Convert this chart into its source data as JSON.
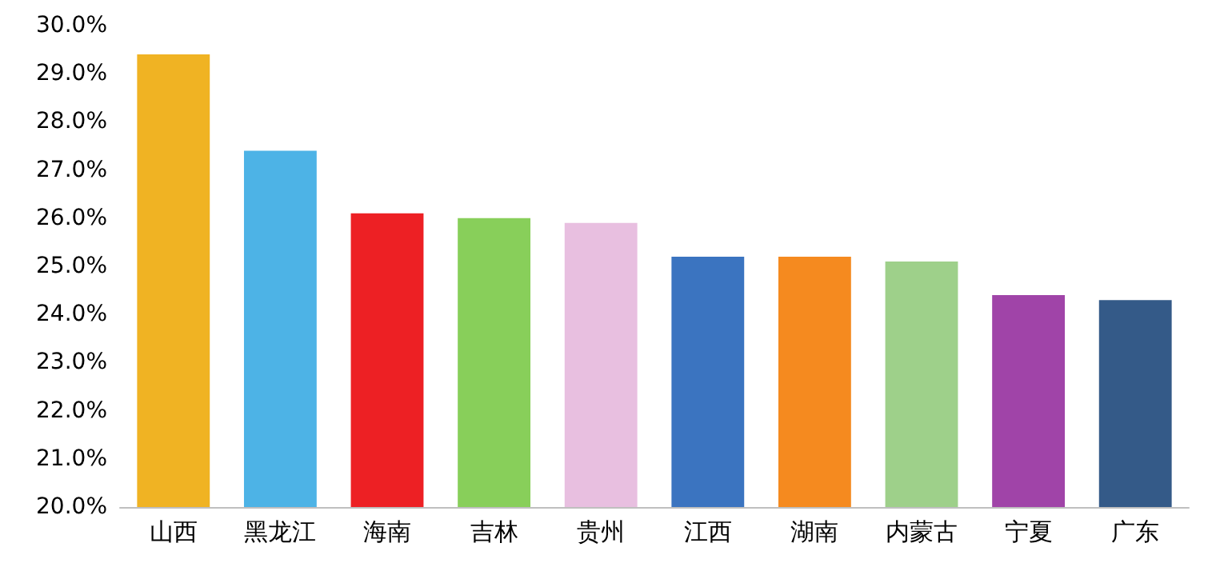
{
  "chart_data": {
    "type": "bar",
    "categories": [
      "山西",
      "黑龙江",
      "海南",
      "吉林",
      "贵州",
      "江西",
      "湖南",
      "内蒙古",
      "宁夏",
      "广东"
    ],
    "values": [
      29.4,
      27.4,
      26.1,
      26.0,
      25.9,
      25.2,
      25.2,
      25.1,
      24.4,
      24.3
    ],
    "colors": [
      "#f0b323",
      "#4db3e6",
      "#ed2024",
      "#88cf5a",
      "#e8bfe0",
      "#3b74c0",
      "#f58a1f",
      "#9ed08a",
      "#a044a8",
      "#345a88"
    ],
    "ylim": [
      20,
      30
    ],
    "yticks": [
      {
        "value": 20,
        "label": "20.0%"
      },
      {
        "value": 21,
        "label": "21.0%"
      },
      {
        "value": 22,
        "label": "22.0%"
      },
      {
        "value": 23,
        "label": "23.0%"
      },
      {
        "value": 24,
        "label": "24.0%"
      },
      {
        "value": 25,
        "label": "25.0%"
      },
      {
        "value": 26,
        "label": "26.0%"
      },
      {
        "value": 27,
        "label": "27.0%"
      },
      {
        "value": 28,
        "label": "28.0%"
      },
      {
        "value": 29,
        "label": "29.0%"
      },
      {
        "value": 30,
        "label": "30.0%"
      }
    ],
    "grid": false
  }
}
